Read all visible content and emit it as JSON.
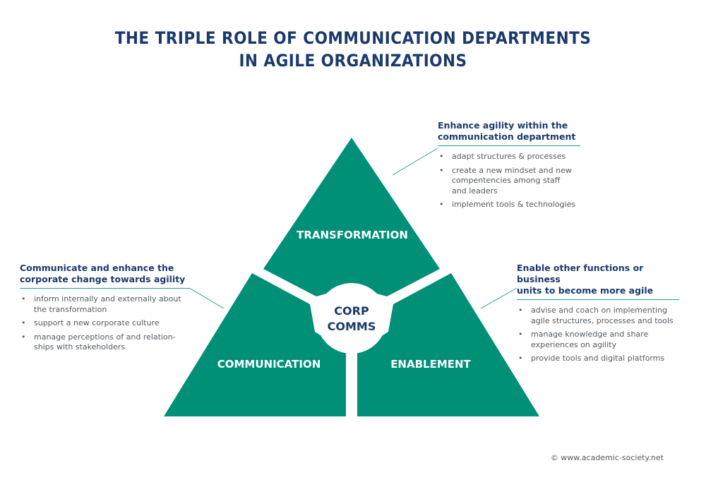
{
  "title": {
    "line1": "THE TRIPLE ROLE OF COMMUNICATION DEPARTMENTS",
    "line2": "IN AGILE ORGANIZATIONS"
  },
  "segments": {
    "top": "TRANSFORMATION",
    "left": "COMMUNICATION",
    "right": "ENABLEMENT",
    "center_line1": "CORP",
    "center_line2": "COMMS"
  },
  "colors": {
    "triangle": "#008f77",
    "title": "#1b3a6b",
    "rule": "#1c9c9a"
  },
  "blocks": {
    "transformation": {
      "heading1": "Enhance agility within the",
      "heading2": "communication department",
      "items": [
        {
          "lines": [
            "adapt structures & processes"
          ]
        },
        {
          "lines": [
            "create a new mindset and new",
            "compentencies among staff",
            "and leaders"
          ]
        },
        {
          "lines": [
            "implement tools & technologies"
          ]
        }
      ]
    },
    "communication": {
      "heading1": "Communicate and enhance the",
      "heading2": "corporate change towards agility",
      "items": [
        {
          "lines": [
            "inform internally and externally about",
            "the transformation"
          ]
        },
        {
          "lines": [
            "support a new corporate culture"
          ]
        },
        {
          "lines": [
            "manage perceptions of and relation-",
            "ships with stakeholders"
          ]
        }
      ]
    },
    "enablement": {
      "heading1": "Enable other functions or business",
      "heading2": "units to become more agile",
      "items": [
        {
          "lines": [
            "advise and coach on implementing",
            "agile structures, processes and tools"
          ]
        },
        {
          "lines": [
            "manage knowledge and share",
            "experiences on agility"
          ]
        },
        {
          "lines": [
            "provide tools and digital platforms"
          ]
        }
      ]
    }
  },
  "copyright": "© www.academic-society.net"
}
